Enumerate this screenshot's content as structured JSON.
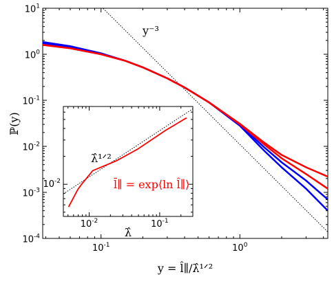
{
  "chart_data": [
    {
      "type": "line",
      "xlabel": "y = l̂∥/λ̂¹ᐟ²",
      "ylabel": "ℙ(y)",
      "xscale": "log",
      "yscale": "log",
      "xlim": [
        0.038,
        4.3
      ],
      "ylim": [
        0.0001,
        10
      ],
      "xticks": [
        {
          "value": 0.1,
          "label": "10^-1"
        },
        {
          "value": 1,
          "label": "10^0"
        }
      ],
      "yticks": [
        {
          "value": 0.0001,
          "label": "10^-4"
        },
        {
          "value": 0.001,
          "label": "10^-3"
        },
        {
          "value": 0.01,
          "label": "10^-2"
        },
        {
          "value": 0.1,
          "label": "10^-1"
        },
        {
          "value": 1,
          "label": "10^0"
        },
        {
          "value": 10,
          "label": "10^1"
        }
      ],
      "x": [
        0.038,
        0.06,
        0.1,
        0.15,
        0.2,
        0.3,
        0.4,
        0.6,
        1,
        1.5,
        2,
        3,
        4.3
      ],
      "series": [
        {
          "color": "#0000ff",
          "values": [
            1.85,
            1.5,
            1.05,
            0.72,
            0.52,
            0.3,
            0.19,
            0.09,
            0.028,
            0.008,
            0.0035,
            0.0012,
            0.0004
          ]
        },
        {
          "color": "#0000ff",
          "values": [
            1.75,
            1.45,
            1.03,
            0.72,
            0.52,
            0.3,
            0.19,
            0.09,
            0.029,
            0.0095,
            0.0045,
            0.0018,
            0.0007
          ]
        },
        {
          "color": "#ff0000",
          "values": [
            1.6,
            1.35,
            1.0,
            0.72,
            0.52,
            0.3,
            0.19,
            0.09,
            0.03,
            0.011,
            0.0055,
            0.0025,
            0.0012
          ]
        },
        {
          "color": "#ff0000",
          "values": [
            1.6,
            1.35,
            1.0,
            0.72,
            0.52,
            0.3,
            0.19,
            0.09,
            0.031,
            0.012,
            0.0065,
            0.0035,
            0.0022
          ]
        }
      ],
      "reference": {
        "x": [
          0.09,
          4.3
        ],
        "values": [
          15.1,
          0.000138
        ],
        "label": "y⁻³"
      }
    },
    {
      "type": "line",
      "xlabel": "λ̂",
      "xscale": "log",
      "yscale": "log",
      "xlim": [
        0.0043,
        0.295
      ],
      "ylim": [
        0.0045,
        0.069
      ],
      "xticks": [
        {
          "value": 0.01,
          "label": "10^-2"
        },
        {
          "value": 0.1,
          "label": "10^-1"
        }
      ],
      "yticks": [
        {
          "value": 0.01,
          "label": "10^-2"
        }
      ],
      "x": [
        0.0051,
        0.0069,
        0.0078,
        0.0112,
        0.0246,
        0.049,
        0.12,
        0.24
      ],
      "series": [
        {
          "color": "#ff0000",
          "values": [
            0.0057,
            0.0088,
            0.01,
            0.014,
            0.018,
            0.024,
            0.038,
            0.052
          ]
        }
      ],
      "reference": {
        "x": [
          0.0043,
          0.295
        ],
        "values": [
          0.00787,
          0.0652
        ],
        "label": "λ̂¹ᐟ²"
      },
      "annotation": "l̄∥ = exp⟨ln l̂∥⟩"
    }
  ]
}
